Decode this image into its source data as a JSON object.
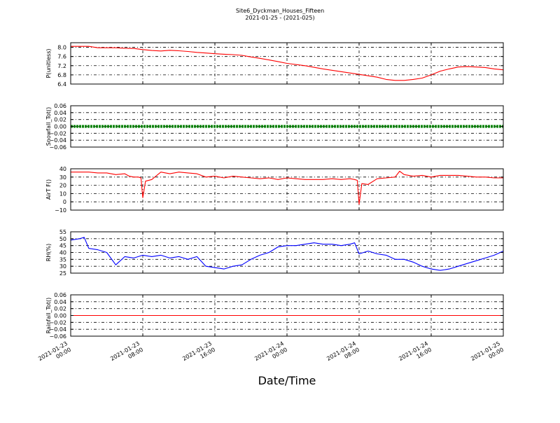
{
  "chart_data": {
    "type": "line",
    "title": "Site6_Dyckman_Houses_Fifteen",
    "subtitle": "2021-01-25 - (2021-025)",
    "xlabel": "Date/Time",
    "x_ticks": [
      "2021-01-23\n00:00",
      "2021-01-23\n08:00",
      "2021-01-23\n16:00",
      "2021-01-24\n00:00",
      "2021-01-24\n08:00",
      "2021-01-24\n16:00",
      "2021-01-25\n00:00"
    ],
    "x_range_hours": [
      0,
      48
    ],
    "grid": true,
    "panels": [
      {
        "ylabel": "P(unitless)",
        "ylim": [
          6.4,
          8.2
        ],
        "yticks": [
          "6.4",
          "6.8",
          "7.2",
          "7.6",
          "8.0"
        ],
        "ytick_values": [
          6.4,
          6.8,
          7.2,
          7.6,
          8.0
        ],
        "color": "#ff0000",
        "style": "line",
        "x": [
          0,
          2,
          3,
          5,
          6,
          7,
          8,
          9,
          10,
          11,
          12,
          13,
          14,
          15,
          16,
          17,
          18,
          19,
          20,
          21,
          22,
          23,
          24,
          26,
          28,
          30,
          32,
          33,
          34,
          35,
          36,
          37,
          38,
          39,
          40,
          41,
          42,
          43,
          44,
          45,
          46,
          47,
          48
        ],
        "y": [
          8.04,
          8.04,
          7.98,
          7.98,
          7.96,
          7.95,
          7.9,
          7.86,
          7.84,
          7.87,
          7.85,
          7.82,
          7.78,
          7.75,
          7.72,
          7.7,
          7.68,
          7.65,
          7.58,
          7.52,
          7.45,
          7.38,
          7.3,
          7.2,
          7.06,
          6.94,
          6.82,
          6.76,
          6.7,
          6.6,
          6.56,
          6.56,
          6.6,
          6.66,
          6.8,
          6.96,
          7.06,
          7.14,
          7.16,
          7.14,
          7.12,
          7.06,
          7.02
        ]
      },
      {
        "ylabel": "Snowfall_Tot()",
        "ylim": [
          -0.06,
          0.06
        ],
        "yticks": [
          "−0.06",
          "−0.04",
          "−0.02",
          "0.00",
          "0.02",
          "0.04",
          "0.06"
        ],
        "ytick_values": [
          -0.06,
          -0.04,
          -0.02,
          0.0,
          0.02,
          0.04,
          0.06
        ],
        "color": "#008000",
        "style": "thick-dotted",
        "x": [
          0,
          48
        ],
        "y": [
          0.0,
          0.0
        ]
      },
      {
        "ylabel": "AirT F()",
        "ylim": [
          -10,
          40
        ],
        "yticks": [
          "−10",
          "0",
          "10",
          "20",
          "30",
          "40"
        ],
        "ytick_values": [
          -10,
          0,
          10,
          20,
          30,
          40
        ],
        "color": "#ff0000",
        "style": "line",
        "x": [
          0,
          1,
          2,
          3,
          4,
          5,
          6,
          6.5,
          7,
          7.5,
          7.8,
          8,
          8.3,
          9,
          10,
          11,
          12,
          13,
          14,
          15,
          16,
          17,
          18,
          19,
          20,
          21,
          22,
          23,
          24,
          25,
          26,
          27,
          28,
          29,
          30,
          31,
          31.5,
          31.8,
          32,
          32.3,
          33,
          34,
          35,
          36,
          36.5,
          37,
          38,
          39,
          40,
          41,
          42,
          43,
          44,
          45,
          46,
          47,
          48
        ],
        "y": [
          36,
          36,
          36,
          35,
          35,
          33,
          34,
          31,
          30,
          30,
          29,
          5,
          25,
          27,
          36,
          34,
          36,
          35,
          34,
          30,
          31,
          29,
          31,
          30,
          29,
          28,
          29,
          27,
          29,
          28,
          27,
          27,
          27,
          28,
          27,
          28,
          27,
          26,
          -3,
          22,
          21,
          28,
          29,
          30,
          37,
          33,
          31,
          32,
          30,
          32,
          32,
          32,
          31,
          30,
          30,
          29,
          29
        ]
      },
      {
        "ylabel": "RH(%)",
        "ylim": [
          25,
          55
        ],
        "yticks": [
          "25",
          "30",
          "35",
          "40",
          "45",
          "50",
          "55"
        ],
        "ytick_values": [
          25,
          30,
          35,
          40,
          45,
          50,
          55
        ],
        "color": "#0000ff",
        "style": "line",
        "x": [
          0,
          1,
          1.5,
          2,
          3,
          4,
          5,
          6,
          7,
          8,
          9,
          10,
          11,
          12,
          13,
          14,
          15,
          16,
          17,
          18,
          19,
          20,
          21,
          22,
          23,
          24,
          25,
          26,
          27,
          28,
          29,
          30,
          31,
          31.5,
          32,
          33,
          34,
          35,
          36,
          37,
          38,
          39,
          40,
          41,
          42,
          43,
          44,
          45,
          46,
          47,
          48
        ],
        "y": [
          49,
          50,
          51,
          43,
          42,
          40,
          31,
          37,
          36,
          38,
          37,
          38,
          36,
          37,
          35,
          37,
          30,
          29,
          28,
          30,
          31,
          35,
          38,
          40,
          44,
          45,
          45,
          46,
          47,
          46,
          46,
          45,
          46,
          47,
          39,
          41,
          39,
          38,
          35,
          35,
          33,
          30,
          28,
          27,
          28,
          30,
          32,
          34,
          36,
          38,
          41
        ]
      },
      {
        "ylabel": "Rainfall_Tot()",
        "ylim": [
          -0.06,
          0.06
        ],
        "yticks": [
          "−0.06",
          "−0.04",
          "−0.02",
          "0.00",
          "0.02",
          "0.04",
          "0.06"
        ],
        "ytick_values": [
          -0.06,
          -0.04,
          -0.02,
          0.0,
          0.02,
          0.04,
          0.06
        ],
        "color": "#ff0000",
        "style": "line",
        "x": [
          0,
          48
        ],
        "y": [
          0.0,
          0.0
        ]
      }
    ]
  }
}
